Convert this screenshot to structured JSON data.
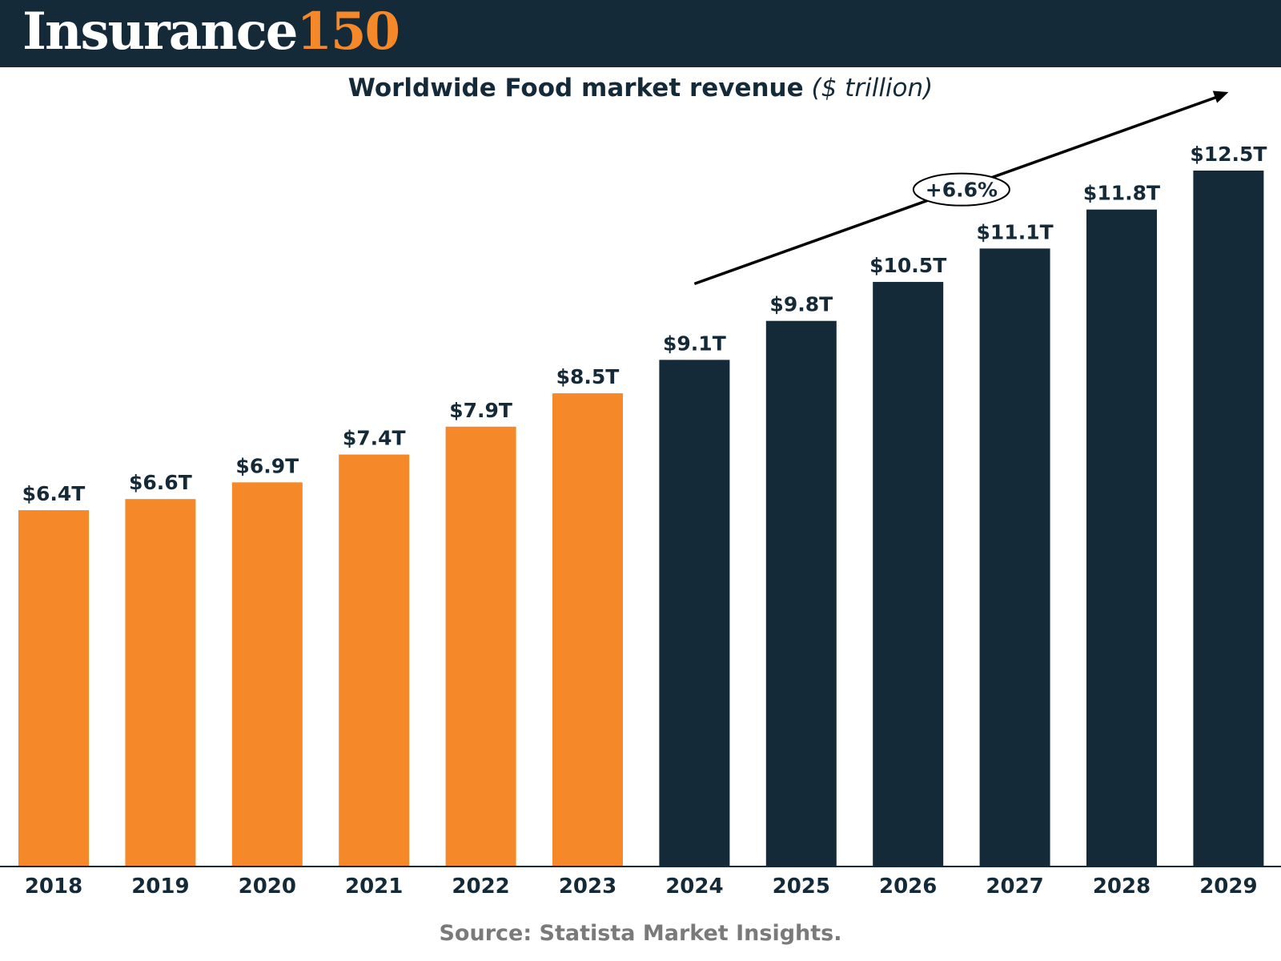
{
  "header": {
    "logo_word": "Insurance",
    "logo_number": "150"
  },
  "colors": {
    "header_bg": "#152a38",
    "historical": "#f5892a",
    "forecast": "#152a38",
    "logo_accent": "#f5892a"
  },
  "chart_data": {
    "type": "bar",
    "title": "Worldwide Food market revenue",
    "unit": "($ trillion)",
    "categories": [
      "2018",
      "2019",
      "2020",
      "2021",
      "2022",
      "2023",
      "2024",
      "2025",
      "2026",
      "2027",
      "2028",
      "2029"
    ],
    "values": [
      6.4,
      6.6,
      6.9,
      7.4,
      7.9,
      8.5,
      9.1,
      9.8,
      10.5,
      11.1,
      11.8,
      12.5
    ],
    "value_labels": [
      "$6.4T",
      "$6.6T",
      "$6.9T",
      "$7.4T",
      "$7.9T",
      "$8.5T",
      "$9.1T",
      "$9.8T",
      "$10.5T",
      "$11.1T",
      "$11.8T",
      "$12.5T"
    ],
    "bar_colors": [
      "#f5892a",
      "#f5892a",
      "#f5892a",
      "#f5892a",
      "#f5892a",
      "#f5892a",
      "#152a38",
      "#152a38",
      "#152a38",
      "#152a38",
      "#152a38",
      "#152a38"
    ],
    "ylim": [
      0,
      12.5
    ],
    "grid": false,
    "annotation": {
      "label": "+6.6%",
      "from_category": "2024",
      "to_category": "2029"
    }
  },
  "source": "Source: Statista Market Insights."
}
